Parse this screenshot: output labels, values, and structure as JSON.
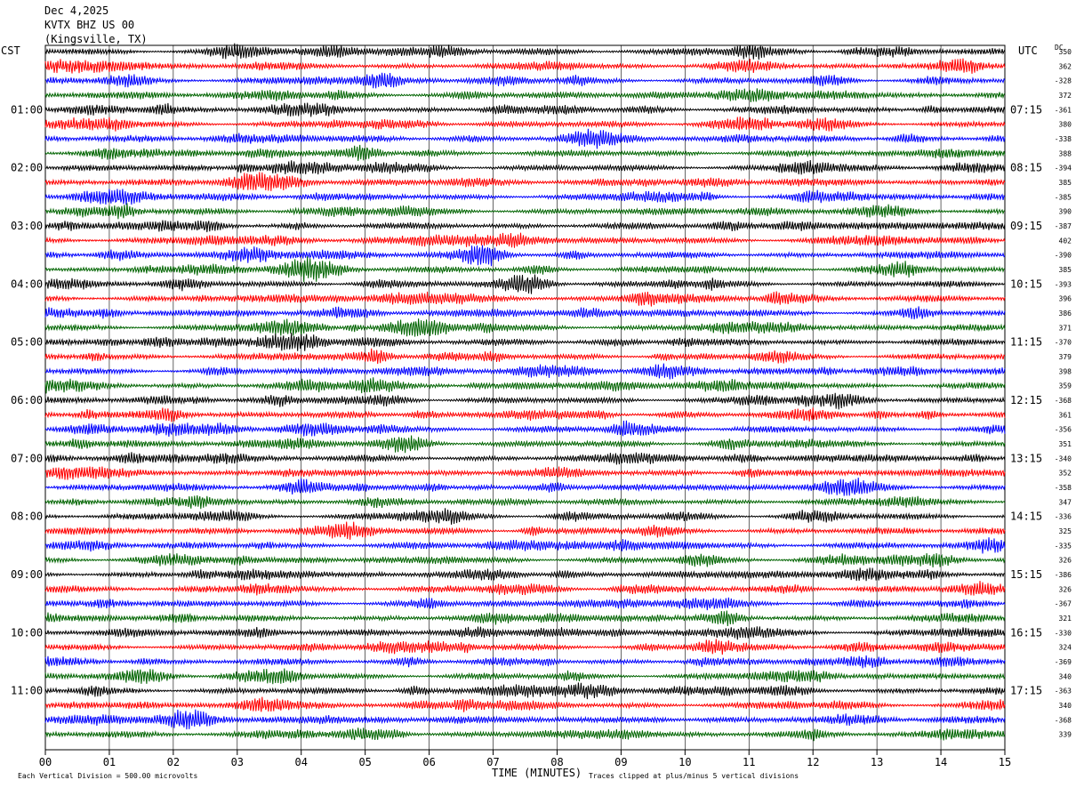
{
  "header": {
    "date": "Dec 4,2025",
    "station": "KVTX BHZ US 00",
    "location": "(Kingsville, TX)"
  },
  "axes": {
    "left_tz": "CST",
    "right_tz": "UTC",
    "dc_label": "DC",
    "xlabel": "TIME (MINUTES)"
  },
  "footer": {
    "scale_note": "Each Vertical Division =  500.00 microvolts",
    "clip_note": "Traces clipped at plus/minus 5 vertical divisions"
  },
  "colors": {
    "trace_cycle": [
      "#000000",
      "#ff0000",
      "#0000ff",
      "#006400"
    ],
    "grid": "#000000",
    "background": "#ffffff"
  },
  "chart_data": {
    "type": "line",
    "title": "KVTX BHZ US 00 (Kingsville, TX) Dec 4,2025",
    "xlabel": "TIME (MINUTES)",
    "x_ticks": [
      "00",
      "01",
      "02",
      "03",
      "04",
      "05",
      "06",
      "07",
      "08",
      "09",
      "10",
      "11",
      "12",
      "13",
      "14",
      "15"
    ],
    "xlim": [
      0,
      15
    ],
    "traces_per_hour": 4,
    "minutes_per_trace": 15,
    "left_hour_labels": [
      "01:00",
      "02:00",
      "03:00",
      "04:00",
      "05:00",
      "06:00",
      "07:00",
      "08:00",
      "09:00",
      "10:00",
      "11:00"
    ],
    "right_utc_labels": [
      "07:15",
      "08:15",
      "09:15",
      "10:15",
      "11:15",
      "12:15",
      "13:15",
      "14:15",
      "15:15",
      "16:15",
      "17:15"
    ],
    "dc_offsets": [
      350,
      362,
      -328,
      372,
      -361,
      380,
      -338,
      388,
      -394,
      385,
      -385,
      390,
      -387,
      402,
      -390,
      385,
      -393,
      396,
      386,
      371,
      -370,
      379,
      398,
      359,
      -368,
      361,
      -356,
      351,
      -340,
      352,
      -358,
      347,
      -336,
      325,
      -335,
      326,
      -386,
      326,
      -367,
      321,
      -330,
      324,
      -369,
      340,
      -363,
      340,
      -368,
      339
    ],
    "scale_microvolts_per_division": 500.0,
    "clip_divisions": 5
  }
}
